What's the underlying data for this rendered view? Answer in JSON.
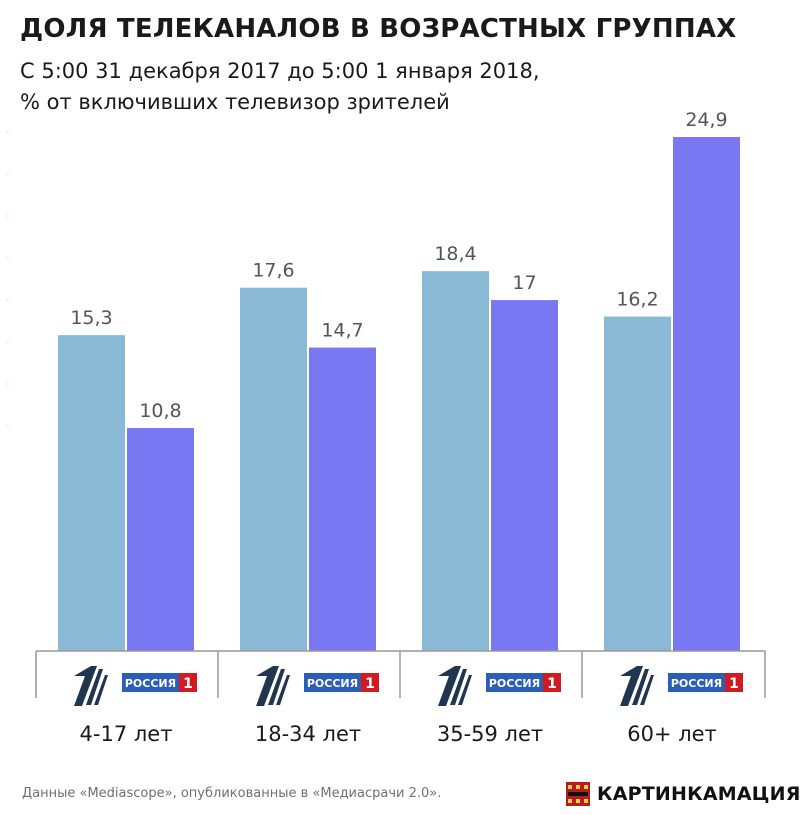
{
  "title": "ДОЛЯ ТЕЛЕКАНАЛОВ В ВОЗРАСТНЫХ ГРУППАХ",
  "subtitle_line1": "С 5:00 31 декабря 2017 до 5:00 1 января 2018,",
  "subtitle_line2": "% от включивших телевизор зрителей",
  "footer": {
    "source": "Данные «Mediascope», опубликованные в «Медиасрачи 2.0».",
    "brand": "КАРТИНКАМАЦИЯ"
  },
  "colors": {
    "channel_one": "#8ab9d6",
    "russia_one": "#7977f2",
    "russia_logo_blue": "#2c5eb6",
    "russia_logo_red": "#d11a22",
    "logo_dark": "#1f3550",
    "brand_red": "#b81d1d"
  },
  "channel_logos": {
    "channel_one_icon": "channel-one-logo-icon",
    "russia_one_word": "РОССИЯ",
    "russia_one_digit": "1"
  },
  "chart_data": {
    "type": "bar",
    "categories": [
      "4-17 лет",
      "18-34 лет",
      "35-59 лет",
      "60+ лет"
    ],
    "series": [
      {
        "values": [
          15.3,
          17.6,
          18.4,
          16.2
        ],
        "labels": [
          "15,3",
          "17,6",
          "18,4",
          "16,2"
        ],
        "color": "#8ab9d6"
      },
      {
        "values": [
          10.8,
          14.7,
          17,
          24.9
        ],
        "labels": [
          "10,8",
          "14,7",
          "17",
          "24,9"
        ],
        "color": "#7977f2"
      }
    ],
    "ylim": [
      0,
      24.9
    ],
    "grid": false,
    "legend": "none"
  }
}
